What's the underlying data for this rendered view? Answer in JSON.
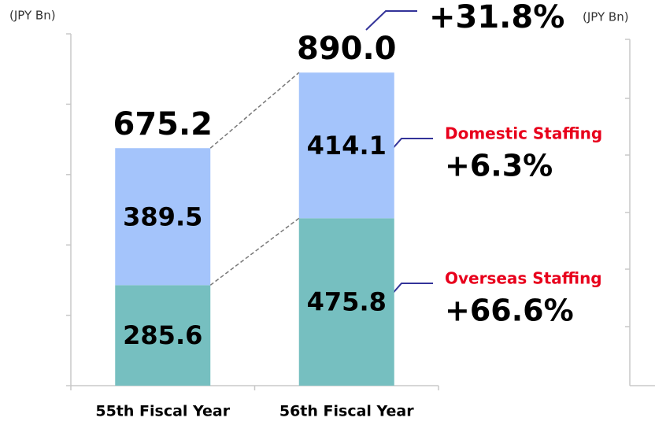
{
  "chart_data": {
    "type": "bar",
    "stacked": true,
    "units": [
      "(JPY Bn)",
      "(JPY Bn)"
    ],
    "categories": [
      "55th Fiscal Year",
      "56th Fiscal Year"
    ],
    "series": [
      {
        "name": "Overseas Staffing",
        "color": "#76bfc0",
        "values": [
          285.6,
          475.8
        ]
      },
      {
        "name": "Domestic Staffing",
        "color": "#a4c4fb",
        "values": [
          389.5,
          414.1
        ]
      }
    ],
    "totals": [
      675.2,
      890
    ],
    "total_labels": [
      "675.2",
      "890.0"
    ],
    "annotations": [
      "+31.8%",
      "+6.3%",
      "+66.6%"
    ],
    "ylim": [
      0,
      1000
    ],
    "yticks": [
      0,
      200,
      400,
      600,
      800,
      1000
    ]
  }
}
